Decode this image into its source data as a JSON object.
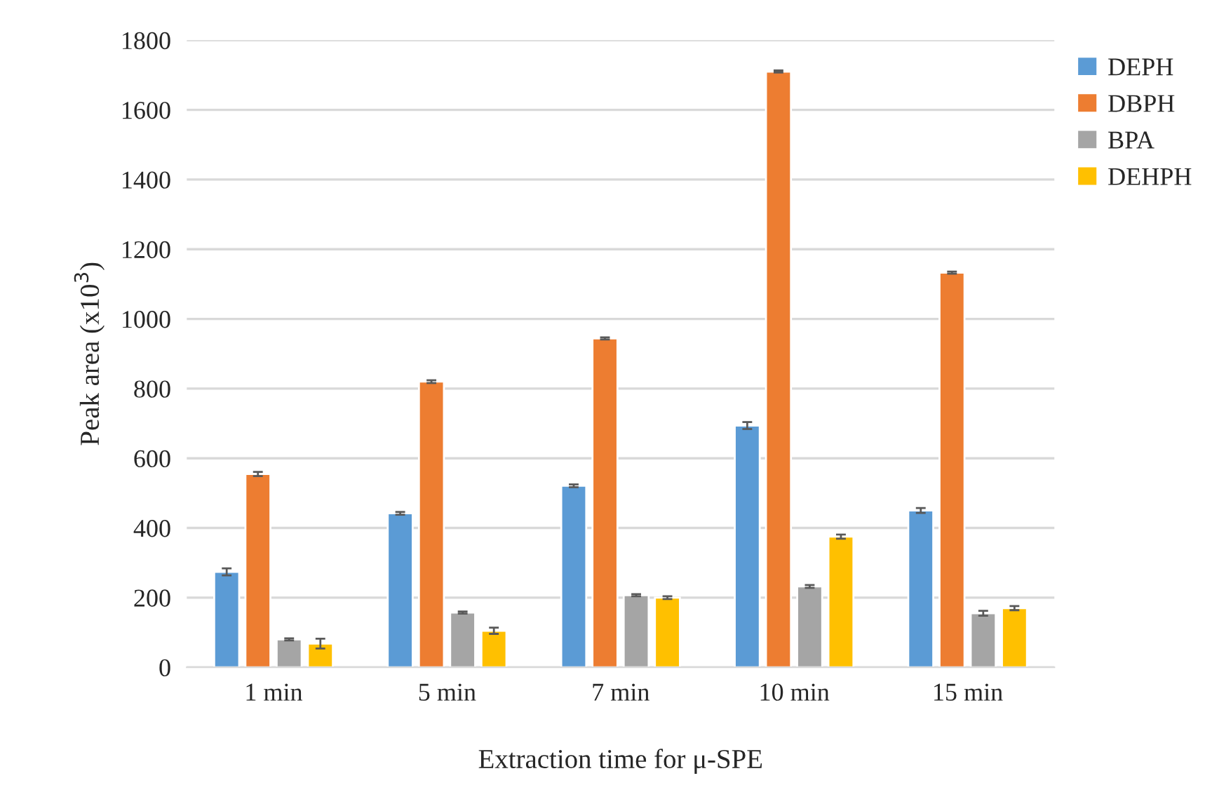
{
  "chart_data": {
    "type": "bar",
    "xlabel": "Extraction time for μ-SPE",
    "ylabel": "Peak area (x10$^{3}$)",
    "categories": [
      "1 min",
      "5 min",
      "7 min",
      "10 min",
      "15 min"
    ],
    "series": [
      {
        "name": "DEPH",
        "color": "#5b9bd5",
        "values": [
          274,
          442,
          521,
          694,
          450
        ],
        "errors": [
          10,
          4,
          4,
          10,
          7
        ]
      },
      {
        "name": "DBPH",
        "color": "#ed7d31",
        "values": [
          555,
          820,
          944,
          1710,
          1133
        ],
        "errors": [
          6,
          4,
          3,
          3,
          3
        ]
      },
      {
        "name": "BPA",
        "color": "#a5a5a5",
        "values": [
          80,
          157,
          207,
          232,
          155
        ],
        "errors": [
          3,
          3,
          3,
          4,
          7
        ]
      },
      {
        "name": "DEHPH",
        "color": "#ffc000",
        "values": [
          68,
          105,
          200,
          375,
          170
        ],
        "errors": [
          14,
          9,
          4,
          6,
          6
        ]
      }
    ],
    "ylim": [
      0,
      1800
    ],
    "yticks": [
      0,
      200,
      400,
      600,
      800,
      1000,
      1200,
      1400,
      1600,
      1800
    ],
    "grid": "y",
    "legend": "top right"
  }
}
